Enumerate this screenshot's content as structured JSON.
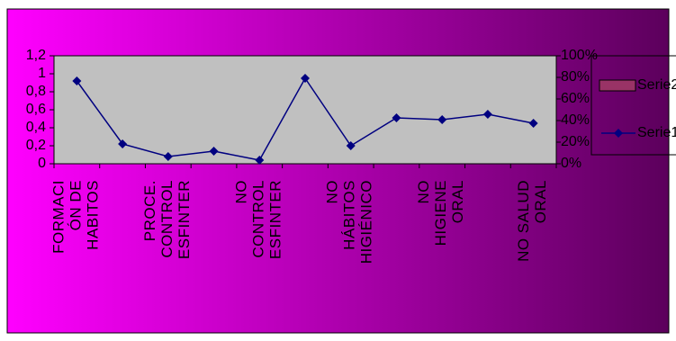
{
  "chart_data": {
    "type": "line",
    "categories": [
      "FORMACI\nÓN DE\nHABITOS",
      null,
      "PROCE.\nCONTROL\nESFINTER",
      null,
      "NO\nCONTROL\nESFINTER",
      null,
      "NO\nHÁBITOS\nHIGIÉNICO",
      null,
      "NO\nHIGIENE\nORAL",
      null,
      "NO SALUD\nORAL"
    ],
    "series": [
      {
        "name": "Serie2",
        "color": "#993366",
        "axis": "y2",
        "values": [
          null,
          null,
          null,
          null,
          null,
          null,
          null,
          null,
          null,
          null,
          null
        ]
      },
      {
        "name": "Serie1",
        "color": "#000080",
        "values": [
          0.92,
          0.22,
          0.08,
          0.14,
          0.04,
          0.95,
          0.2,
          0.51,
          0.49,
          0.55,
          0.45
        ]
      }
    ],
    "ylim": [
      0,
      1.2
    ],
    "yticks": [
      0,
      {
        "value": 0.2,
        "label": "0,2"
      },
      {
        "value": 0.4,
        "label": "0,4"
      },
      {
        "value": 0.6,
        "label": "0,6"
      },
      {
        "value": 0.8,
        "label": "0,8"
      },
      1,
      {
        "value": 1.2,
        "label": "1,2"
      }
    ],
    "y2lim": [
      0,
      100
    ],
    "y2ticks": [
      {
        "value": 0,
        "label": "0%"
      },
      {
        "value": 20,
        "label": "20%"
      },
      {
        "value": 40,
        "label": "40%"
      },
      {
        "value": 60,
        "label": "60%"
      },
      {
        "value": 80,
        "label": "80%"
      },
      {
        "value": 100,
        "label": "100%"
      }
    ],
    "grid": false,
    "legend": "right"
  }
}
